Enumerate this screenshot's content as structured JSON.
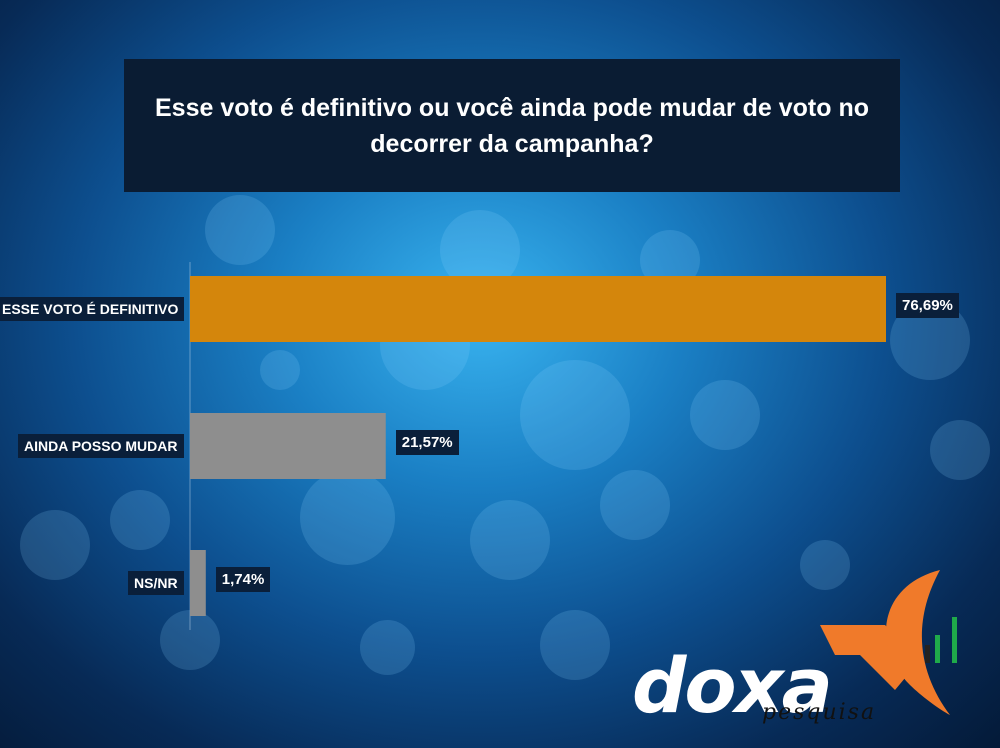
{
  "title": "Esse voto é definitivo ou você ainda pode mudar de voto no decorrer da campanha?",
  "chart_data": {
    "type": "bar",
    "orientation": "horizontal",
    "title": "Esse voto é definitivo ou você ainda pode mudar de voto no decorrer da campanha?",
    "categories": [
      "ESSE VOTO É DEFINITIVO",
      "AINDA POSSO MUDAR",
      "NS/NR"
    ],
    "values": [
      76.69,
      21.57,
      1.74
    ],
    "value_labels": [
      "76,69%",
      "21,57%",
      "1,74%"
    ],
    "unit": "%",
    "xlim": [
      0,
      100
    ],
    "grid": false,
    "bar_colors": [
      "#d4860c",
      "#8e8e8e",
      "#8e8e8e"
    ]
  },
  "logo": {
    "word": "doxa",
    "sub": "pesquisa",
    "colors": {
      "orange": "#f07a2a",
      "green": "#1faa4a",
      "dark": "#222222"
    }
  }
}
